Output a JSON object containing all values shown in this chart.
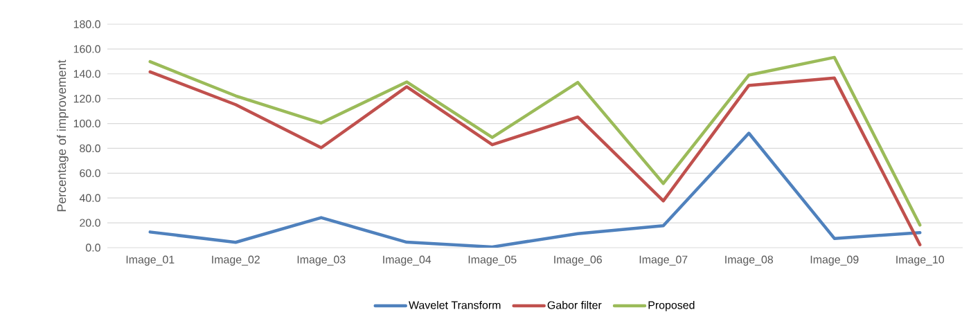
{
  "chart_data": {
    "type": "line",
    "ylabel": "Percentage of improvement",
    "categories": [
      "Image_01",
      "Image_02",
      "Image_03",
      "Image_04",
      "Image_05",
      "Image_06",
      "Image_07",
      "Image_08",
      "Image_09",
      "Image_10"
    ],
    "series": [
      {
        "name": "Wavelet Transform",
        "color": "#4f81bd",
        "values": [
          12.6,
          4.3,
          24.2,
          4.4,
          0.6,
          11.3,
          17.7,
          92.2,
          7.4,
          12.1
        ]
      },
      {
        "name": "Gabor filter",
        "color": "#c0504d",
        "values": [
          141.6,
          115.2,
          80.5,
          129.6,
          82.9,
          105.2,
          37.7,
          130.7,
          136.6,
          2.4
        ]
      },
      {
        "name": "Proposed",
        "color": "#9bbb59",
        "values": [
          149.8,
          122.3,
          100.4,
          133.5,
          88.8,
          133.1,
          51.7,
          139.0,
          153.3,
          18.2
        ]
      }
    ],
    "ylim": [
      0,
      180
    ],
    "yticks": [
      {
        "value": 0,
        "label": "0.0"
      },
      {
        "value": 20,
        "label": "20.0"
      },
      {
        "value": 40,
        "label": "40.0"
      },
      {
        "value": 60,
        "label": "60.0"
      },
      {
        "value": 80,
        "label": "80.0"
      },
      {
        "value": 100,
        "label": "100.0"
      },
      {
        "value": 120,
        "label": "120.0"
      },
      {
        "value": 140,
        "label": "140.0"
      },
      {
        "value": 160,
        "label": "160.0"
      },
      {
        "value": 180,
        "label": "180.0"
      }
    ],
    "grid": "y",
    "legend": "bottom",
    "marker": "none",
    "line_style": "solid"
  }
}
